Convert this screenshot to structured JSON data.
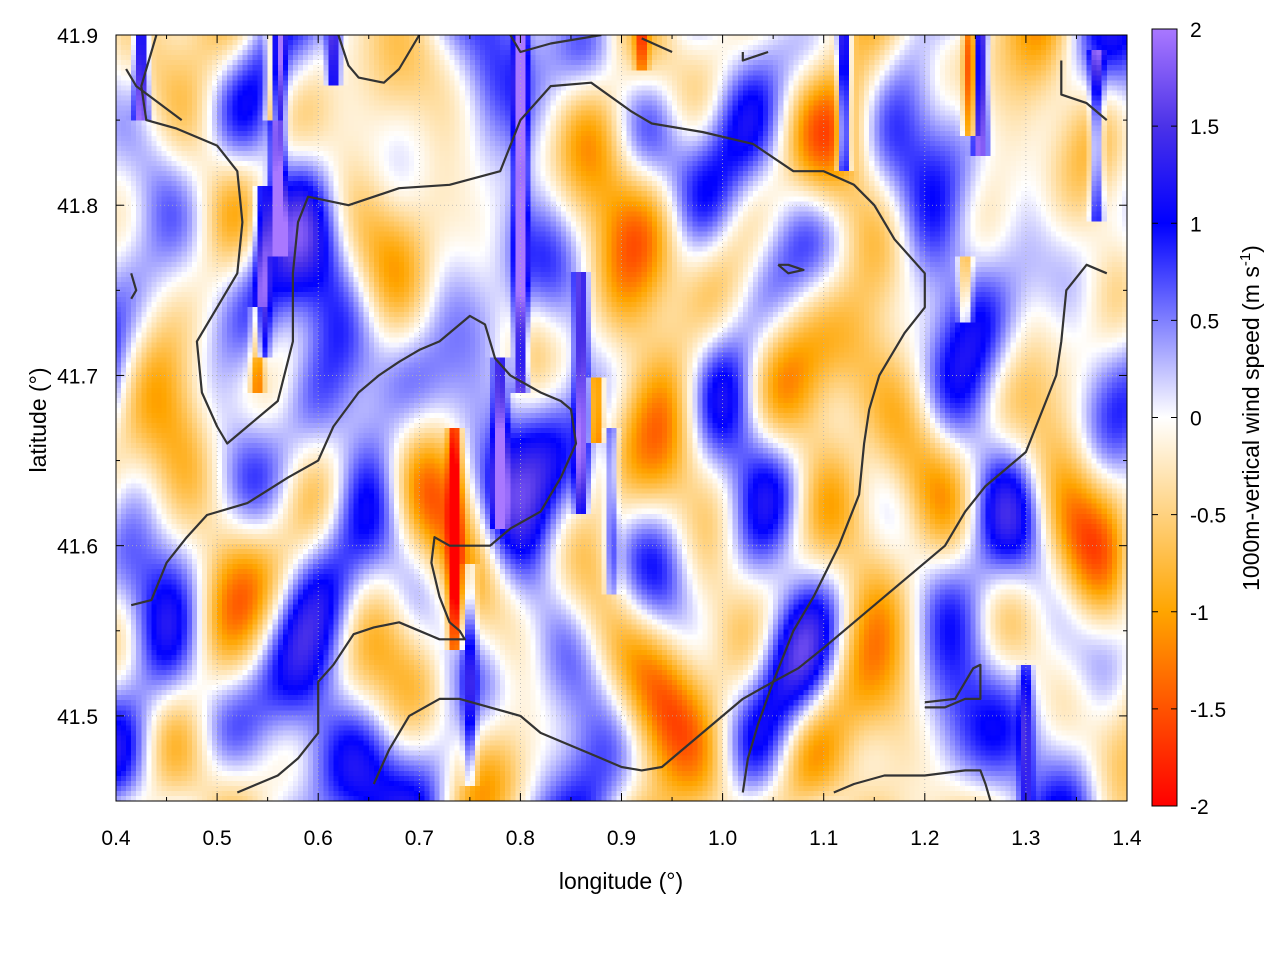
{
  "chart_data": {
    "type": "heatmap",
    "xlabel": "longitude (°)",
    "ylabel": "latitude (°)",
    "colorbar_label": "1000m-vertical wind speed (m s",
    "colorbar_unit_exp": "-1",
    "colorbar_unit_close": ")",
    "xlim": [
      0.4,
      1.4
    ],
    "ylim": [
      41.45,
      41.9
    ],
    "clim": [
      -2,
      2
    ],
    "x_ticks": [
      0.4,
      0.5,
      0.6,
      0.7,
      0.8,
      0.9,
      1.0,
      1.1,
      1.2,
      1.3,
      1.4
    ],
    "x_tick_labels": [
      "0.4",
      "0.5",
      "0.6",
      "0.7",
      "0.8",
      "0.9",
      "1.0",
      "1.1",
      "1.2",
      "1.3",
      "1.4"
    ],
    "y_ticks": [
      41.5,
      41.6,
      41.7,
      41.8,
      41.9
    ],
    "y_tick_labels": [
      "41.5",
      "41.6",
      "41.7",
      "41.8",
      "41.9"
    ],
    "colorbar_ticks": [
      2,
      1.5,
      1,
      0.5,
      0,
      -0.5,
      -1,
      -1.5,
      -2
    ],
    "colorbar_tick_labels": [
      "2",
      "1.5",
      "1",
      "0.5",
      "0",
      "-0.5",
      "-1",
      "-1.5",
      "-2"
    ],
    "colormap": [
      {
        "value": -2,
        "color": "#ff0000"
      },
      {
        "value": -1,
        "color": "#ffa500"
      },
      {
        "value": 0,
        "color": "#ffffff"
      },
      {
        "value": 1,
        "color": "#0000ff"
      },
      {
        "value": 1.5,
        "color": "#4b32e8"
      },
      {
        "value": 2,
        "color": "#a978ff"
      }
    ],
    "grid": true,
    "legend": "colorbar-right",
    "streaks": [
      {
        "lon": 0.425,
        "lat0": 41.86,
        "lat1": 41.9,
        "w": 2.0
      },
      {
        "lon": 0.56,
        "lat0": 41.78,
        "lat1": 41.9,
        "w": 2.0
      },
      {
        "lon": 0.545,
        "lat0": 41.72,
        "lat1": 41.8,
        "w": 1.2
      },
      {
        "lon": 0.615,
        "lat0": 41.88,
        "lat1": 41.9,
        "w": 1.6
      },
      {
        "lon": 0.8,
        "lat0": 41.7,
        "lat1": 41.9,
        "w": 2.0
      },
      {
        "lon": 0.78,
        "lat0": 41.62,
        "lat1": 41.7,
        "w": 1.6
      },
      {
        "lon": 0.86,
        "lat0": 41.63,
        "lat1": 41.75,
        "w": 1.6
      },
      {
        "lon": 0.75,
        "lat0": 41.47,
        "lat1": 41.58,
        "w": 0.9
      },
      {
        "lon": 1.12,
        "lat0": 41.83,
        "lat1": 41.9,
        "w": 2.0
      },
      {
        "lon": 1.255,
        "lat0": 41.84,
        "lat1": 41.9,
        "w": 2.0
      },
      {
        "lon": 1.37,
        "lat0": 41.8,
        "lat1": 41.88,
        "w": 1.2
      },
      {
        "lon": 1.3,
        "lat0": 41.46,
        "lat1": 41.52,
        "w": 1.0
      },
      {
        "lon": 0.89,
        "lat0": 41.58,
        "lat1": 41.66,
        "w": 0.8
      }
    ],
    "neg_streaks": [
      {
        "lon": 0.735,
        "lat0": 41.55,
        "lat1": 41.66,
        "w": -1.8
      },
      {
        "lon": 0.555,
        "lat0": 41.86,
        "lat1": 41.9,
        "w": -1.6
      },
      {
        "lon": 1.245,
        "lat0": 41.85,
        "lat1": 41.9,
        "w": -1.4
      },
      {
        "lon": 0.875,
        "lat0": 41.67,
        "lat1": 41.69,
        "w": -1.5
      },
      {
        "lon": 0.54,
        "lat0": 41.7,
        "lat1": 41.73,
        "w": -1.2
      },
      {
        "lon": 1.24,
        "lat0": 41.74,
        "lat1": 41.76,
        "w": -1.0
      },
      {
        "lon": 0.92,
        "lat0": 41.89,
        "lat1": 41.9,
        "w": -1.0
      }
    ],
    "contours": [
      [
        [
          0.44,
          41.9
        ],
        [
          0.425,
          41.87
        ],
        [
          0.43,
          41.85
        ],
        [
          0.46,
          41.845
        ],
        [
          0.5,
          41.835
        ],
        [
          0.52,
          41.82
        ],
        [
          0.525,
          41.79
        ],
        [
          0.52,
          41.76
        ],
        [
          0.5,
          41.74
        ],
        [
          0.48,
          41.72
        ],
        [
          0.485,
          41.69
        ],
        [
          0.5,
          41.67
        ],
        [
          0.51,
          41.66
        ],
        [
          0.53,
          41.67
        ],
        [
          0.56,
          41.685
        ],
        [
          0.575,
          41.72
        ],
        [
          0.575,
          41.76
        ],
        [
          0.58,
          41.79
        ],
        [
          0.59,
          41.805
        ],
        [
          0.63,
          41.8
        ],
        [
          0.68,
          41.81
        ],
        [
          0.73,
          41.812
        ],
        [
          0.78,
          41.82
        ],
        [
          0.8,
          41.85
        ],
        [
          0.83,
          41.87
        ],
        [
          0.87,
          41.872
        ],
        [
          0.91,
          41.855
        ],
        [
          0.93,
          41.848
        ],
        [
          0.98,
          41.843
        ],
        [
          1.03,
          41.836
        ],
        [
          1.07,
          41.82
        ],
        [
          1.1,
          41.82
        ],
        [
          1.13,
          41.812
        ],
        [
          1.15,
          41.8
        ],
        [
          1.17,
          41.78
        ],
        [
          1.2,
          41.76
        ],
        [
          1.2,
          41.74
        ],
        [
          1.18,
          41.725
        ],
        [
          1.155,
          41.7
        ],
        [
          1.145,
          41.68
        ],
        [
          1.14,
          41.66
        ],
        [
          1.135,
          41.63
        ],
        [
          1.115,
          41.6
        ],
        [
          1.09,
          41.57
        ],
        [
          1.07,
          41.55
        ],
        [
          1.05,
          41.52
        ],
        [
          1.035,
          41.495
        ],
        [
          1.025,
          41.475
        ],
        [
          1.02,
          41.455
        ]
      ],
      [
        [
          0.465,
          41.85
        ],
        [
          0.42,
          41.87
        ],
        [
          0.41,
          41.88
        ]
      ],
      [
        [
          0.415,
          41.76
        ],
        [
          0.42,
          41.75
        ],
        [
          0.415,
          41.745
        ]
      ],
      [
        [
          0.415,
          41.565
        ],
        [
          0.435,
          41.568
        ],
        [
          0.45,
          41.59
        ],
        [
          0.47,
          41.605
        ],
        [
          0.49,
          41.618
        ],
        [
          0.53,
          41.625
        ],
        [
          0.57,
          41.64
        ],
        [
          0.6,
          41.65
        ],
        [
          0.615,
          41.67
        ],
        [
          0.64,
          41.69
        ],
        [
          0.66,
          41.7
        ],
        [
          0.68,
          41.708
        ],
        [
          0.7,
          41.715
        ],
        [
          0.72,
          41.72
        ],
        [
          0.75,
          41.735
        ],
        [
          0.765,
          41.73
        ],
        [
          0.775,
          41.71
        ],
        [
          0.79,
          41.7
        ],
        [
          0.82,
          41.69
        ],
        [
          0.84,
          41.685
        ],
        [
          0.85,
          41.68
        ],
        [
          0.855,
          41.66
        ],
        [
          0.84,
          41.64
        ],
        [
          0.82,
          41.62
        ],
        [
          0.79,
          41.61
        ],
        [
          0.77,
          41.6
        ],
        [
          0.755,
          41.6
        ],
        [
          0.73,
          41.6
        ],
        [
          0.715,
          41.605
        ],
        [
          0.712,
          41.59
        ],
        [
          0.72,
          41.57
        ],
        [
          0.73,
          41.555
        ],
        [
          0.74,
          41.55
        ],
        [
          0.745,
          41.545
        ],
        [
          0.72,
          41.545
        ],
        [
          0.7,
          41.55
        ],
        [
          0.68,
          41.555
        ],
        [
          0.655,
          41.552
        ],
        [
          0.635,
          41.548
        ],
        [
          0.615,
          41.53
        ],
        [
          0.6,
          41.52
        ],
        [
          0.6,
          41.505
        ],
        [
          0.6,
          41.49
        ],
        [
          0.58,
          41.475
        ],
        [
          0.56,
          41.465
        ],
        [
          0.54,
          41.46
        ],
        [
          0.52,
          41.455
        ]
      ],
      [
        [
          0.655,
          41.46
        ],
        [
          0.67,
          41.48
        ],
        [
          0.69,
          41.5
        ],
        [
          0.72,
          41.51
        ],
        [
          0.74,
          41.51
        ],
        [
          0.77,
          41.505
        ],
        [
          0.8,
          41.5
        ],
        [
          0.82,
          41.49
        ],
        [
          0.84,
          41.485
        ],
        [
          0.86,
          41.48
        ],
        [
          0.88,
          41.475
        ],
        [
          0.9,
          41.47
        ],
        [
          0.92,
          41.468
        ],
        [
          0.94,
          41.47
        ],
        [
          0.96,
          41.48
        ],
        [
          0.98,
          41.49
        ],
        [
          1.0,
          41.5
        ],
        [
          1.02,
          41.51
        ],
        [
          1.05,
          41.52
        ],
        [
          1.075,
          41.528
        ],
        [
          1.1,
          41.54
        ],
        [
          1.13,
          41.555
        ],
        [
          1.16,
          41.57
        ],
        [
          1.19,
          41.585
        ],
        [
          1.22,
          41.6
        ],
        [
          1.24,
          41.62
        ],
        [
          1.26,
          41.635
        ],
        [
          1.28,
          41.645
        ],
        [
          1.3,
          41.655
        ],
        [
          1.31,
          41.67
        ],
        [
          1.32,
          41.685
        ],
        [
          1.33,
          41.7
        ],
        [
          1.335,
          41.72
        ],
        [
          1.34,
          41.75
        ],
        [
          1.36,
          41.765
        ],
        [
          1.38,
          41.76
        ]
      ],
      [
        [
          1.2,
          41.505
        ],
        [
          1.22,
          41.505
        ],
        [
          1.24,
          41.51
        ],
        [
          1.255,
          41.51
        ],
        [
          1.255,
          41.53
        ],
        [
          1.248,
          41.528
        ],
        [
          1.23,
          41.51
        ],
        [
          1.2,
          41.508
        ]
      ],
      [
        [
          1.11,
          41.455
        ],
        [
          1.13,
          41.46
        ],
        [
          1.16,
          41.465
        ],
        [
          1.2,
          41.465
        ],
        [
          1.24,
          41.468
        ],
        [
          1.255,
          41.468
        ],
        [
          1.26,
          41.46
        ],
        [
          1.265,
          41.45
        ]
      ],
      [
        [
          1.055,
          41.765
        ],
        [
          1.065,
          41.765
        ],
        [
          1.08,
          41.762
        ],
        [
          1.065,
          41.76
        ],
        [
          1.055,
          41.765
        ]
      ],
      [
        [
          1.335,
          41.885
        ],
        [
          1.335,
          41.865
        ],
        [
          1.36,
          41.86
        ],
        [
          1.38,
          41.85
        ]
      ],
      [
        [
          0.62,
          41.9
        ],
        [
          0.63,
          41.882
        ],
        [
          0.64,
          41.875
        ],
        [
          0.665,
          41.872
        ],
        [
          0.68,
          41.88
        ],
        [
          0.7,
          41.9
        ]
      ],
      [
        [
          0.79,
          41.9
        ],
        [
          0.8,
          41.89
        ],
        [
          0.83,
          41.895
        ],
        [
          0.88,
          41.9
        ]
      ],
      [
        [
          0.92,
          41.898
        ],
        [
          0.95,
          41.89
        ]
      ],
      [
        [
          1.02,
          41.89
        ],
        [
          1.02,
          41.885
        ],
        [
          1.045,
          41.89
        ]
      ]
    ]
  }
}
